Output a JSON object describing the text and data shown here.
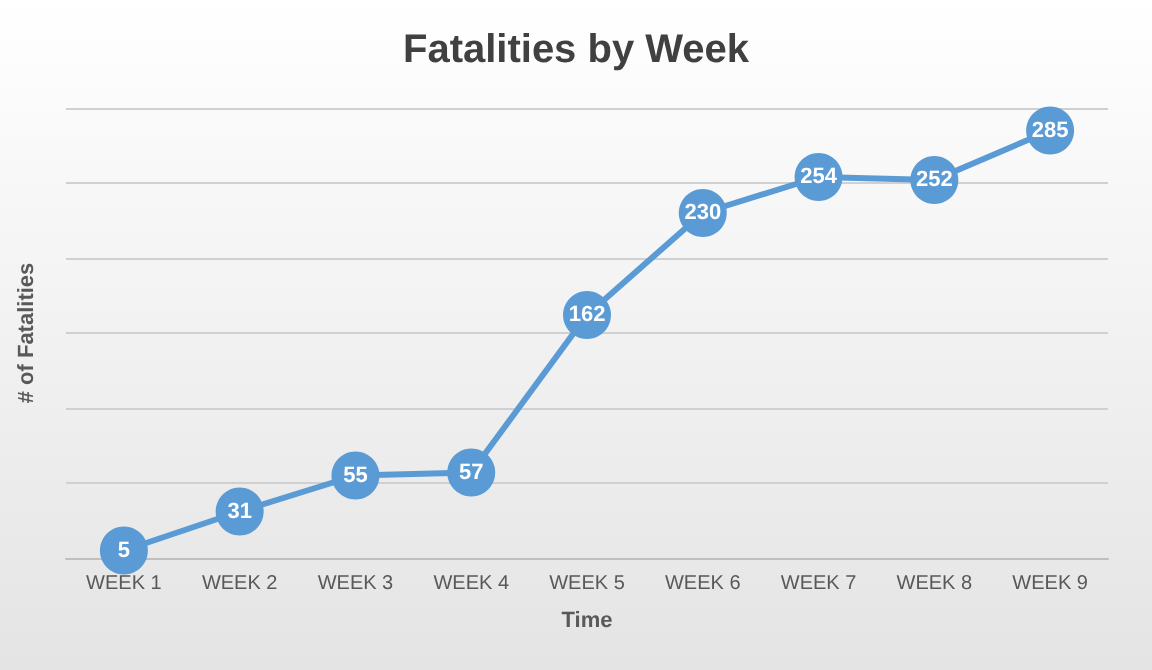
{
  "chart_data": {
    "type": "line",
    "title": "Fatalities by Week",
    "xlabel": "Time",
    "ylabel": "# of Fatalities",
    "categories": [
      "WEEK 1",
      "WEEK 2",
      "WEEK 3",
      "WEEK 4",
      "WEEK 5",
      "WEEK 6",
      "WEEK 7",
      "WEEK 8",
      "WEEK 9"
    ],
    "series": [
      {
        "color": "#5b9bd5",
        "values": [
          5,
          31,
          55,
          57,
          162,
          230,
          254,
          252,
          285
        ]
      }
    ],
    "ylim": [
      0,
      300
    ],
    "yticks": [
      {
        "value": 0,
        "label": null
      },
      {
        "value": 50,
        "label": null
      },
      {
        "value": 100,
        "label": null
      },
      {
        "value": 150,
        "label": null
      },
      {
        "value": 200,
        "label": null
      },
      {
        "value": 250,
        "label": null
      },
      {
        "value": 300,
        "label": null
      }
    ],
    "tick_labels": "x",
    "grid": "y",
    "data_labels": true,
    "marker": "circle",
    "line_style": "solid"
  }
}
